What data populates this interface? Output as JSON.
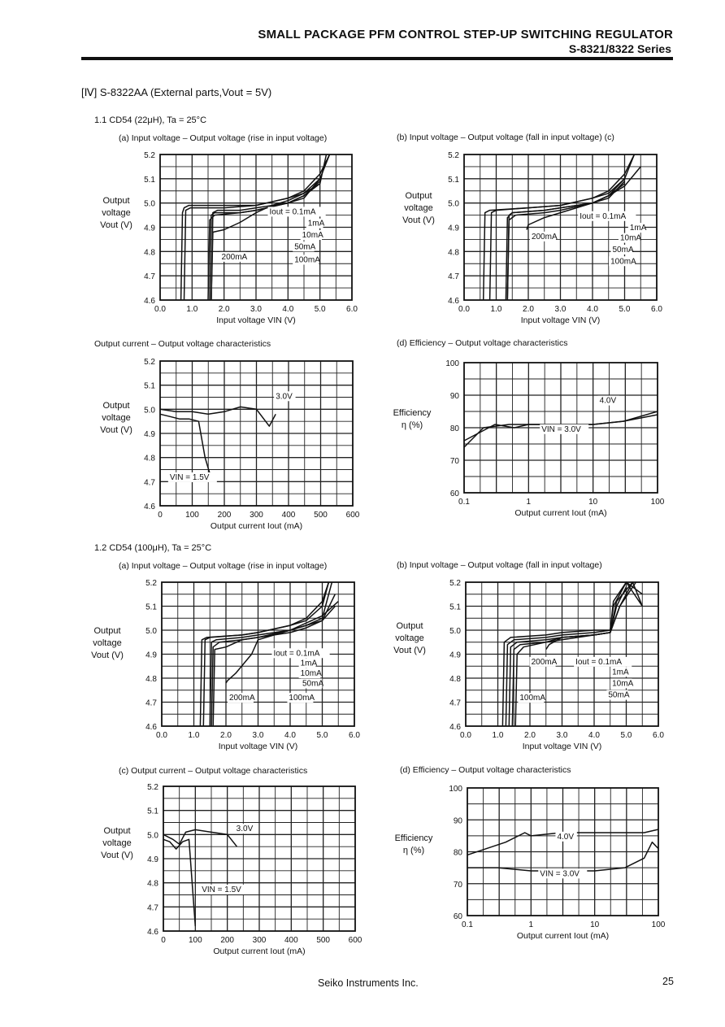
{
  "header": {
    "title": "SMALL PACKAGE PFM CONTROL STEP-UP SWITCHING REGULATOR",
    "series": "S-8321/8322 Series"
  },
  "section_title": "[Ⅳ] S-8322AA  (External parts,Vout = 5V)",
  "sub_1_1": "1.1   CD54 (22μH),  Ta = 25°C",
  "sub_1_2": "1.2   CD54 (100μH),  Ta = 25°C",
  "captions": {
    "c11a": "(a)   Input voltage  –  Output voltage  (rise in input voltage)",
    "c11b": "(b)   Input voltage – Output voltage (fall in input voltage)  (c)",
    "c11c": "Output current  –  Output voltage characteristics",
    "c11d": "(d)   Efficiency  –  Output voltage characteristics",
    "c12a": "(a)   Input voltage  –  Output voltage  (rise in input voltage)",
    "c12b": "(b)   Input voltage – Output voltage (fall in input voltage)",
    "c12c": "(c)     Output current  –  Output voltage characteristics",
    "c12d": "(d)   Efficiency  –  Output voltage characteristics"
  },
  "footer": {
    "company": "Seiko Instruments Inc.",
    "page": "25"
  },
  "chart_data": [
    {
      "id": "11a",
      "type": "line",
      "ylabel": [
        "Output",
        "voltage",
        "Vout (V)"
      ],
      "xlabel": "Input voltage  VIN (V)",
      "xlim": [
        0,
        6
      ],
      "ylim": [
        4.6,
        5.2
      ],
      "xticks": [
        "0.0",
        "1.0",
        "2.0",
        "3.0",
        "4.0",
        "5.0",
        "6.0"
      ],
      "yticks": [
        "4.6",
        "4.7",
        "4.8",
        "4.9",
        "5.0",
        "5.1",
        "5.2"
      ],
      "grid": true,
      "annotations": [
        "Iout = 0.1mA",
        "1mA",
        "10mA",
        "50mA",
        "100mA",
        "200mA"
      ],
      "series": [
        {
          "name": "0.1mA",
          "x": [
            0.65,
            0.7,
            0.75,
            0.9,
            2.0,
            3.0,
            4.0,
            4.5,
            5.0,
            5.3
          ],
          "y": [
            4.6,
            4.96,
            4.98,
            4.99,
            4.99,
            4.99,
            5.02,
            5.05,
            5.12,
            5.25
          ]
        },
        {
          "name": "1mA",
          "x": [
            0.75,
            0.8,
            0.95,
            2.0,
            3.0,
            4.0,
            4.5,
            5.0,
            5.3
          ],
          "y": [
            4.6,
            4.97,
            4.98,
            4.98,
            4.99,
            5.02,
            5.04,
            5.1,
            5.22
          ]
        },
        {
          "name": "10mA",
          "x": [
            1.6,
            1.65,
            1.8,
            2.5,
            3.0,
            4.0,
            4.5,
            5.0,
            5.2
          ],
          "y": [
            4.6,
            4.96,
            4.97,
            4.97,
            4.98,
            5.0,
            5.03,
            5.08,
            5.2
          ]
        },
        {
          "name": "50mA",
          "x": [
            1.55,
            1.6,
            1.7,
            2.5,
            3.0,
            4.0,
            4.5,
            5.0
          ],
          "y": [
            4.6,
            4.95,
            4.96,
            4.96,
            4.97,
            5.0,
            5.02,
            5.1
          ]
        },
        {
          "name": "100mA",
          "x": [
            1.5,
            1.55,
            1.7,
            2.5,
            3.0,
            4.0,
            4.5,
            5.0
          ],
          "y": [
            4.6,
            4.93,
            4.95,
            4.96,
            4.97,
            5.0,
            5.03,
            5.09
          ]
        },
        {
          "name": "200mA",
          "x": [
            1.6,
            1.65,
            2.0,
            2.5,
            3.0,
            3.5,
            4.0,
            4.5,
            5.0
          ],
          "y": [
            4.6,
            4.88,
            4.89,
            4.92,
            4.96,
            4.99,
            5.01,
            5.04,
            5.08
          ]
        }
      ]
    },
    {
      "id": "11b",
      "type": "line",
      "ylabel": [
        "Output",
        "voltage",
        "Vout (V)"
      ],
      "xlabel": "Input voltage  VIN (V)",
      "xlim": [
        0,
        6
      ],
      "ylim": [
        4.6,
        5.2
      ],
      "xticks": [
        "0.0",
        "1.0",
        "2.0",
        "3.0",
        "4.0",
        "5.0",
        "6.0"
      ],
      "yticks": [
        "4.6",
        "4.7",
        "4.8",
        "4.9",
        "5.0",
        "5.1",
        "5.2"
      ],
      "grid": true,
      "annotations": [
        "Iout = 0.1mA",
        "1mA",
        "200mA",
        "10mA",
        "50mA",
        "100mA"
      ],
      "series": [
        {
          "name": "0.1mA",
          "x": [
            0.6,
            0.65,
            0.8,
            2.0,
            3.0,
            4.0,
            4.5,
            5.0,
            5.3
          ],
          "y": [
            4.6,
            4.96,
            4.97,
            4.98,
            4.99,
            5.02,
            5.05,
            5.12,
            5.24
          ]
        },
        {
          "name": "1mA",
          "x": [
            0.8,
            0.85,
            1.0,
            2.0,
            3.0,
            4.0,
            4.5,
            5.0,
            5.3
          ],
          "y": [
            4.6,
            4.96,
            4.97,
            4.98,
            4.99,
            5.02,
            5.04,
            5.1,
            5.22
          ]
        },
        {
          "name": "10mA",
          "x": [
            1.35,
            1.4,
            1.5,
            2.5,
            3.0,
            4.0,
            4.5,
            5.0
          ],
          "y": [
            4.6,
            4.95,
            4.96,
            4.97,
            4.98,
            5.0,
            5.03,
            5.08
          ]
        },
        {
          "name": "50mA",
          "x": [
            1.3,
            1.35,
            1.5,
            2.5,
            3.0,
            4.0,
            4.5,
            5.0
          ],
          "y": [
            4.6,
            4.94,
            4.96,
            4.97,
            4.98,
            5.0,
            5.02,
            5.09
          ]
        },
        {
          "name": "100mA",
          "x": [
            1.35,
            1.4,
            1.6,
            2.5,
            3.0,
            4.0,
            4.5,
            5.0
          ],
          "y": [
            4.6,
            4.93,
            4.95,
            4.96,
            4.97,
            5.0,
            5.03,
            5.1
          ]
        },
        {
          "name": "200mA",
          "x": [
            1.95,
            2.0,
            2.5,
            3.0,
            3.5,
            4.0,
            4.5,
            5.0,
            5.5
          ],
          "y": [
            4.89,
            4.91,
            4.94,
            4.96,
            4.98,
            5.0,
            5.03,
            5.07,
            5.15
          ]
        }
      ]
    },
    {
      "id": "11c",
      "type": "line",
      "ylabel": [
        "Output",
        "voltage",
        "Vout (V)"
      ],
      "xlabel": "Output current  Iout (mA)",
      "xlim": [
        0,
        600
      ],
      "ylim": [
        4.6,
        5.2
      ],
      "xticks": [
        "0",
        "100",
        "200",
        "300",
        "400",
        "500",
        "600"
      ],
      "yticks": [
        "4.6",
        "4.7",
        "4.8",
        "4.9",
        "5.0",
        "5.1",
        "5.2"
      ],
      "grid": true,
      "annotations": [
        "3.0V",
        "VIN = 1.5V"
      ],
      "series": [
        {
          "name": "3.0V",
          "x": [
            0,
            50,
            100,
            150,
            200,
            250,
            300,
            340,
            360
          ],
          "y": [
            5.0,
            4.99,
            4.99,
            4.98,
            4.99,
            5.01,
            5.0,
            4.93,
            4.98
          ]
        },
        {
          "name": "VIN = 1.5V",
          "x": [
            0,
            30,
            60,
            90,
            120,
            140,
            160
          ],
          "y": [
            4.98,
            4.97,
            4.96,
            4.96,
            4.95,
            4.8,
            4.71
          ]
        }
      ]
    },
    {
      "id": "11d",
      "type": "line",
      "ylabel": [
        "Efficiency",
        "η (%)"
      ],
      "xlabel": "Output current  Iout (mA)",
      "xscale": "log",
      "xlim": [
        0.1,
        100
      ],
      "ylim": [
        60,
        100
      ],
      "xticks": [
        "0.1",
        "1",
        "10",
        "100"
      ],
      "yticks": [
        "60",
        "70",
        "80",
        "90",
        "100"
      ],
      "grid": true,
      "annotations": [
        "4.0V",
        "VIN = 3.0V"
      ],
      "series": [
        {
          "name": "4.0V",
          "x": [
            0.1,
            0.2,
            0.5,
            1,
            3,
            10,
            30,
            100
          ],
          "y": [
            74,
            80,
            81,
            81,
            81,
            81,
            82,
            85
          ]
        },
        {
          "name": "VIN = 3.0V",
          "x": [
            0.1,
            0.3,
            0.6,
            1,
            3,
            10,
            30,
            100
          ],
          "y": [
            76,
            81,
            80,
            81,
            81,
            81,
            82,
            84
          ]
        }
      ]
    },
    {
      "id": "12a",
      "type": "line",
      "ylabel": [
        "Output",
        "voltage",
        "Vout (V)"
      ],
      "xlabel": "Input voltage  VIN (V)",
      "xlim": [
        0,
        6
      ],
      "ylim": [
        4.6,
        5.2
      ],
      "xticks": [
        "0.0",
        "1.0",
        "2.0",
        "3.0",
        "4.0",
        "5.0",
        "6.0"
      ],
      "yticks": [
        "4.6",
        "4.7",
        "4.8",
        "4.9",
        "5.0",
        "5.1",
        "5.2"
      ],
      "grid": true,
      "annotations": [
        "Iout = 0.1mA",
        "1mA",
        "10mA",
        "50mA",
        "200mA",
        "100mA"
      ],
      "series": [
        {
          "name": "0.1mA",
          "x": [
            1.2,
            1.25,
            1.4,
            2.5,
            3.0,
            4.0,
            4.5,
            5.0,
            5.2
          ],
          "y": [
            4.6,
            4.96,
            4.97,
            4.98,
            4.99,
            5.02,
            5.05,
            5.12,
            5.25
          ]
        },
        {
          "name": "1mA",
          "x": [
            1.3,
            1.35,
            1.5,
            2.5,
            3.0,
            4.0,
            4.5,
            5.0,
            5.2
          ],
          "y": [
            4.6,
            4.96,
            4.97,
            4.98,
            4.99,
            5.02,
            5.04,
            5.1,
            5.22
          ]
        },
        {
          "name": "10mA",
          "x": [
            1.5,
            1.55,
            1.7,
            2.5,
            3.0,
            4.0,
            4.5,
            5.0,
            5.3
          ],
          "y": [
            4.6,
            4.95,
            4.96,
            4.97,
            4.98,
            5.0,
            5.02,
            5.05,
            5.2
          ]
        },
        {
          "name": "50mA",
          "x": [
            1.55,
            1.6,
            1.8,
            2.5,
            3.0,
            4.0,
            4.5,
            5.0,
            5.4
          ],
          "y": [
            4.6,
            4.93,
            4.95,
            4.96,
            4.97,
            5.0,
            5.02,
            5.04,
            5.15
          ]
        },
        {
          "name": "100mA",
          "x": [
            1.6,
            1.65,
            2.0,
            2.5,
            3.0,
            4.0,
            4.5,
            5.0,
            5.4
          ],
          "y": [
            4.6,
            4.92,
            4.93,
            4.96,
            4.97,
            4.99,
            5.01,
            5.04,
            5.1
          ]
        },
        {
          "name": "200mA",
          "x": [
            2.0,
            2.05,
            2.3,
            2.8,
            3.0,
            4.0,
            5.0,
            5.5
          ],
          "y": [
            4.78,
            4.79,
            4.82,
            4.9,
            4.96,
            5.0,
            5.06,
            5.12
          ]
        }
      ]
    },
    {
      "id": "12b",
      "type": "line",
      "ylabel": [
        "Output",
        "voltage",
        "Vout (V)"
      ],
      "xlabel": "Input voltage  VIN (V)",
      "xlim": [
        0,
        6
      ],
      "ylim": [
        4.6,
        5.2
      ],
      "xticks": [
        "0.0",
        "1.0",
        "2.0",
        "3.0",
        "4.0",
        "5.0",
        "6.0"
      ],
      "yticks": [
        "4.6",
        "4.7",
        "4.8",
        "4.9",
        "5.0",
        "5.1",
        "5.2"
      ],
      "grid": true,
      "annotations": [
        "200mA",
        "Iout = 0.1mA",
        "1mA",
        "10mA",
        "100mA",
        "50mA"
      ],
      "series": [
        {
          "name": "0.1mA",
          "x": [
            1.15,
            1.2,
            1.4,
            2.5,
            3.0,
            4.0,
            4.5,
            4.6,
            5.0,
            5.5
          ],
          "y": [
            4.6,
            4.95,
            4.97,
            4.98,
            4.99,
            5.0,
            5.0,
            5.1,
            5.2,
            5.15
          ]
        },
        {
          "name": "1mA",
          "x": [
            1.25,
            1.3,
            1.5,
            2.5,
            3.0,
            4.0,
            4.5,
            4.6,
            5.0,
            5.5
          ],
          "y": [
            4.6,
            4.94,
            4.96,
            4.97,
            4.98,
            4.99,
            5.0,
            5.12,
            5.22,
            5.1
          ]
        },
        {
          "name": "10mA",
          "x": [
            1.35,
            1.4,
            1.6,
            2.5,
            3.0,
            4.0,
            4.5,
            4.7,
            5.0
          ],
          "y": [
            4.6,
            4.93,
            4.95,
            4.96,
            4.97,
            4.98,
            4.99,
            5.1,
            5.18
          ]
        },
        {
          "name": "50mA",
          "x": [
            1.45,
            1.5,
            1.7,
            2.5,
            3.0,
            4.0,
            4.5,
            4.7,
            5.2
          ],
          "y": [
            4.6,
            4.92,
            4.94,
            4.95,
            4.97,
            4.98,
            4.99,
            5.12,
            5.2
          ]
        },
        {
          "name": "100mA",
          "x": [
            1.55,
            1.6,
            1.8,
            2.5,
            3.0,
            4.0,
            4.5,
            4.8,
            5.3
          ],
          "y": [
            4.6,
            4.9,
            4.93,
            4.95,
            4.96,
            4.98,
            4.99,
            5.1,
            5.22
          ]
        },
        {
          "name": "200mA",
          "x": [
            2.5,
            2.6,
            3.0,
            4.0,
            4.5,
            4.8,
            5.2,
            5.5
          ],
          "y": [
            4.92,
            4.94,
            4.97,
            4.98,
            4.99,
            5.1,
            5.2,
            5.1
          ]
        }
      ]
    },
    {
      "id": "12c",
      "type": "line",
      "ylabel": [
        "Output",
        "voltage",
        "Vout (V)"
      ],
      "xlabel": "Output current  Iout (mA)",
      "xlim": [
        0,
        600
      ],
      "ylim": [
        4.6,
        5.2
      ],
      "xticks": [
        "0",
        "100",
        "200",
        "300",
        "400",
        "500",
        "600"
      ],
      "yticks": [
        "4.6",
        "4.7",
        "4.8",
        "4.9",
        "5.0",
        "5.1",
        "5.2"
      ],
      "grid": true,
      "annotations": [
        "3.0V",
        "VIN = 1.5V"
      ],
      "series": [
        {
          "name": "3.0V",
          "x": [
            0,
            30,
            50,
            70,
            100,
            150,
            200,
            230
          ],
          "y": [
            5.0,
            4.98,
            4.96,
            5.01,
            5.02,
            5.01,
            5.0,
            4.95
          ]
        },
        {
          "name": "VIN = 1.5V",
          "x": [
            0,
            20,
            40,
            60,
            80,
            100
          ],
          "y": [
            4.98,
            4.97,
            4.94,
            4.97,
            4.98,
            4.62
          ]
        }
      ]
    },
    {
      "id": "12d",
      "type": "line",
      "ylabel": [
        "Efficiency",
        "η (%)"
      ],
      "xlabel": "Output current  Iout (mA)",
      "xscale": "log",
      "xlim": [
        0.1,
        100
      ],
      "ylim": [
        60,
        100
      ],
      "xticks": [
        "0.1",
        "1",
        "10",
        "100"
      ],
      "yticks": [
        "60",
        "70",
        "80",
        "90",
        "100"
      ],
      "grid": true,
      "annotations": [
        "4.0V",
        "VIN = 3.0V"
      ],
      "series": [
        {
          "name": "4.0V",
          "x": [
            0.1,
            0.2,
            0.4,
            0.8,
            1,
            3,
            10,
            30,
            60,
            100
          ],
          "y": [
            79,
            81,
            83,
            86,
            85,
            86,
            86,
            86,
            86,
            87
          ]
        },
        {
          "name": "VIN = 3.0V",
          "x": [
            0.1,
            0.3,
            1,
            3,
            10,
            30,
            60,
            80,
            100
          ],
          "y": [
            75,
            75,
            74,
            74,
            74,
            75,
            78,
            83,
            81
          ]
        }
      ]
    }
  ]
}
